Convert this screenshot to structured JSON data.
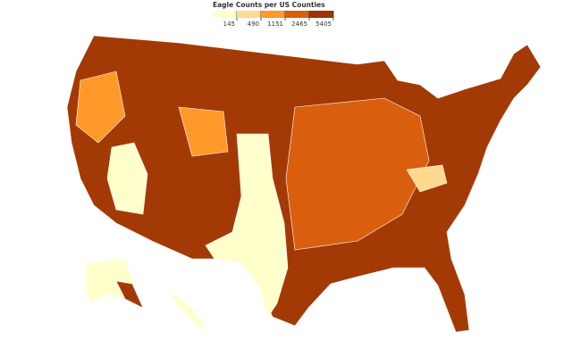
{
  "title": "Eagle Counts per US Counties",
  "legend": {
    "thresholds": [
      145,
      490,
      1151,
      2465,
      5405
    ],
    "colors": [
      "#ffffcc",
      "#fed98e",
      "#fe9929",
      "#d95f0e",
      "#993404"
    ]
  }
}
